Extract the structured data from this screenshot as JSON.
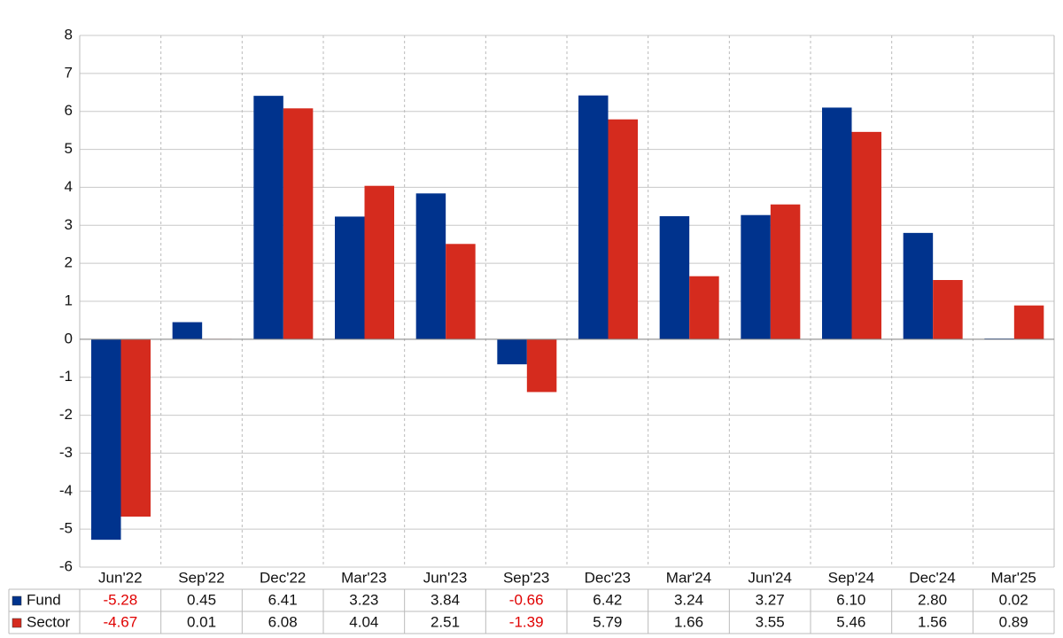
{
  "chart_data": {
    "type": "bar",
    "categories": [
      "Jun'22",
      "Sep'22",
      "Dec'22",
      "Mar'23",
      "Jun'23",
      "Sep'23",
      "Dec'23",
      "Mar'24",
      "Jun'24",
      "Sep'24",
      "Dec'24",
      "Mar'25"
    ],
    "series": [
      {
        "name": "Fund",
        "color": "#00338d",
        "values": [
          -5.28,
          0.45,
          6.41,
          3.23,
          3.84,
          -0.66,
          6.42,
          3.24,
          3.27,
          6.1,
          2.8,
          0.02
        ],
        "value_labels": [
          "-5.28",
          "0.45",
          "6.41",
          "3.23",
          "3.84",
          "-0.66",
          "6.42",
          "3.24",
          "3.27",
          "6.10",
          "2.80",
          "0.02"
        ]
      },
      {
        "name": "Sector",
        "color": "#d52b1e",
        "values": [
          -4.67,
          0.01,
          6.08,
          4.04,
          2.51,
          -1.39,
          5.79,
          1.66,
          3.55,
          5.46,
          1.56,
          0.89
        ],
        "value_labels": [
          "-4.67",
          "0.01",
          "6.08",
          "4.04",
          "2.51",
          "-1.39",
          "5.79",
          "1.66",
          "3.55",
          "5.46",
          "1.56",
          "0.89"
        ]
      }
    ],
    "ylim": [
      -6,
      8
    ],
    "yticks": [
      -6,
      -5,
      -4,
      -3,
      -2,
      -1,
      0,
      1,
      2,
      3,
      4,
      5,
      6,
      7,
      8
    ],
    "grid": true
  }
}
